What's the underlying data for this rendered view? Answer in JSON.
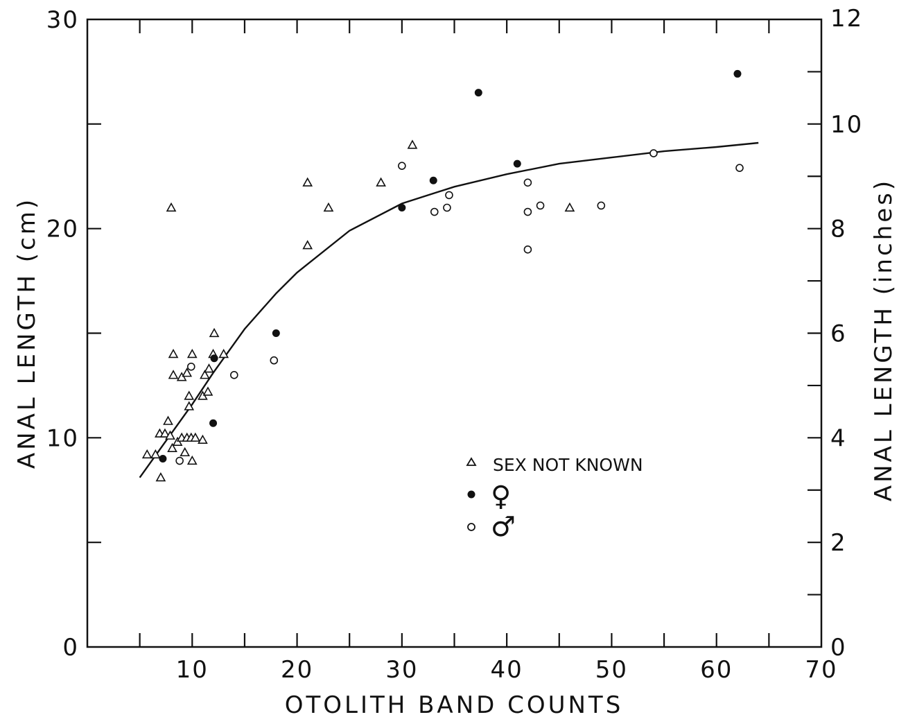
{
  "chart_data": {
    "type": "scatter",
    "xlabel": "OTOLITH BAND COUNTS",
    "ylabel": "ANAL LENGTH (cm)",
    "y2label": "ANAL LENGTH (inches)",
    "xlim": [
      0,
      70
    ],
    "ylim": [
      0,
      30
    ],
    "y2lim": [
      0,
      12
    ],
    "x_ticks": [
      10,
      20,
      30,
      40,
      50,
      60,
      70
    ],
    "x_minor_ticks": [
      5,
      15,
      25,
      35,
      45,
      55,
      65
    ],
    "y_ticks": [
      0,
      10,
      20,
      30
    ],
    "y_minor_ticks": [
      5,
      15,
      25
    ],
    "y2_ticks": [
      0,
      2,
      4,
      6,
      8,
      10,
      12
    ],
    "y2_minor_ticks": [
      1,
      3,
      5,
      7,
      9,
      11
    ],
    "grid": false,
    "legend_position": "center-right",
    "legend": [
      {
        "label": "SEX NOT KNOWN",
        "marker": "open-triangle"
      },
      {
        "label": "♀",
        "marker": "filled-circle"
      },
      {
        "label": "♂",
        "marker": "open-circle"
      }
    ],
    "series": [
      {
        "marker": "open-triangle",
        "points": [
          [
            5.7,
            9.2
          ],
          [
            6.5,
            9.2
          ],
          [
            6.9,
            10.2
          ],
          [
            7.4,
            10.2
          ],
          [
            7.0,
            8.1
          ],
          [
            7.7,
            10.8
          ],
          [
            7.9,
            10.1
          ],
          [
            8.1,
            9.5
          ],
          [
            8.6,
            9.8
          ],
          [
            9.0,
            10.0
          ],
          [
            9.3,
            9.3
          ],
          [
            9.5,
            10.0
          ],
          [
            9.9,
            10.0
          ],
          [
            10.3,
            10.0
          ],
          [
            11.0,
            9.9
          ],
          [
            10.0,
            8.9
          ],
          [
            9.7,
            11.5
          ],
          [
            9.7,
            12.0
          ],
          [
            11.0,
            12.0
          ],
          [
            11.5,
            12.2
          ],
          [
            9.0,
            12.9
          ],
          [
            9.5,
            13.1
          ],
          [
            8.2,
            13.0
          ],
          [
            11.2,
            13.0
          ],
          [
            11.6,
            13.3
          ],
          [
            8.2,
            14.0
          ],
          [
            10.0,
            14.0
          ],
          [
            12.0,
            14.0
          ],
          [
            13.0,
            14.0
          ],
          [
            12.1,
            15.0
          ],
          [
            8.0,
            21.0
          ],
          [
            21.0,
            22.2
          ],
          [
            21.0,
            19.2
          ],
          [
            23.0,
            21.0
          ],
          [
            28.0,
            22.2
          ],
          [
            31.0,
            24.0
          ],
          [
            46.0,
            21.0
          ]
        ]
      },
      {
        "name": "♀",
        "marker": "filled-circle",
        "points": [
          [
            7.2,
            9.0
          ],
          [
            12.0,
            10.7
          ],
          [
            12.1,
            13.8
          ],
          [
            18.0,
            15.0
          ],
          [
            30.0,
            21.0
          ],
          [
            33.0,
            22.3
          ],
          [
            37.3,
            26.5
          ],
          [
            41.0,
            23.1
          ],
          [
            62.0,
            27.4
          ]
        ]
      },
      {
        "name": "♂",
        "marker": "open-circle",
        "points": [
          [
            8.8,
            8.9
          ],
          [
            9.9,
            13.4
          ],
          [
            14.0,
            13.0
          ],
          [
            17.8,
            13.7
          ],
          [
            30.0,
            23.0
          ],
          [
            33.1,
            20.8
          ],
          [
            34.3,
            21.0
          ],
          [
            34.5,
            21.6
          ],
          [
            42.0,
            22.2
          ],
          [
            42.0,
            20.8
          ],
          [
            42.0,
            19.0
          ],
          [
            43.2,
            21.1
          ],
          [
            49.0,
            21.1
          ],
          [
            54.0,
            23.6
          ],
          [
            62.2,
            22.9
          ]
        ]
      }
    ],
    "fitted_curve": {
      "points": [
        [
          5.0,
          8.1
        ],
        [
          8.0,
          10.2
        ],
        [
          10.0,
          11.6
        ],
        [
          12.0,
          13.1
        ],
        [
          15.0,
          15.2
        ],
        [
          18.0,
          16.9
        ],
        [
          20.0,
          17.9
        ],
        [
          25.0,
          19.9
        ],
        [
          30.0,
          21.2
        ],
        [
          35.0,
          22.0
        ],
        [
          40.0,
          22.6
        ],
        [
          45.0,
          23.1
        ],
        [
          50.0,
          23.4
        ],
        [
          55.0,
          23.7
        ],
        [
          60.0,
          23.9
        ],
        [
          64.0,
          24.1
        ]
      ]
    }
  }
}
